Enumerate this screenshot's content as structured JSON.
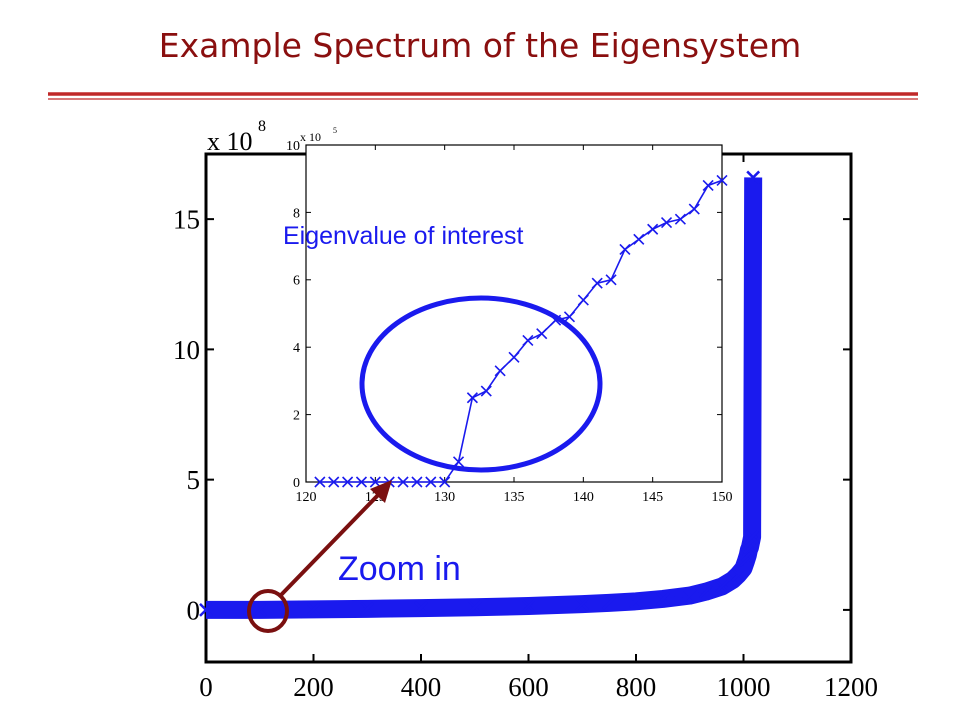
{
  "slide": {
    "title": "Example Spectrum of the Eigensystem",
    "zoom_label": "Zoom in",
    "interest_label": "Eigenvalue of interest",
    "colors": {
      "title": "#8a0f0f",
      "series": "#1a1aee",
      "arrow": "#7a1010",
      "rule": "#c02828"
    }
  },
  "chart_data": [
    {
      "type": "scatter",
      "exponent_label": "x 10",
      "exponent": "8",
      "xlim": [
        0,
        1200
      ],
      "ylim": [
        -2,
        17.5
      ],
      "xticks": [
        0,
        200,
        400,
        600,
        800,
        1000,
        1200
      ],
      "yticks": [
        0,
        5,
        10,
        15
      ],
      "grid": false,
      "marker": "x",
      "series": [
        {
          "x": [
            0,
            100,
            200,
            300,
            400,
            500,
            600,
            700,
            750,
            800,
            850,
            900,
            930,
            960,
            980,
            990,
            1000,
            1005,
            1008,
            1010,
            1012,
            1014,
            1016,
            1018
          ],
          "y": [
            0,
            0,
            0.02,
            0.04,
            0.07,
            0.1,
            0.15,
            0.22,
            0.27,
            0.33,
            0.42,
            0.55,
            0.7,
            0.9,
            1.15,
            1.35,
            1.6,
            1.9,
            2.1,
            2.3,
            2.4,
            2.6,
            2.8,
            16.6
          ]
        }
      ]
    },
    {
      "type": "line",
      "exponent_label": "x 10",
      "exponent": "5",
      "xlim": [
        120,
        150
      ],
      "ylim": [
        0,
        10
      ],
      "xticks": [
        120,
        125,
        130,
        135,
        140,
        145,
        150
      ],
      "yticks": [
        0,
        2,
        4,
        6,
        8,
        10
      ],
      "grid": false,
      "marker": "x",
      "series": [
        {
          "x": [
            121,
            122,
            123,
            124,
            125,
            126,
            127,
            128,
            129,
            130,
            131,
            132,
            133,
            134,
            135,
            136,
            137,
            138,
            139,
            140,
            141,
            142,
            143,
            144,
            145,
            146,
            147,
            148,
            149,
            150
          ],
          "y": [
            0,
            0,
            0,
            0,
            0,
            0,
            0,
            0,
            0,
            0,
            0.6,
            2.5,
            2.7,
            3.3,
            3.7,
            4.2,
            4.4,
            4.8,
            4.9,
            5.4,
            5.9,
            6.0,
            6.9,
            7.2,
            7.5,
            7.7,
            7.8,
            8.1,
            8.8,
            8.95
          ]
        }
      ]
    }
  ]
}
